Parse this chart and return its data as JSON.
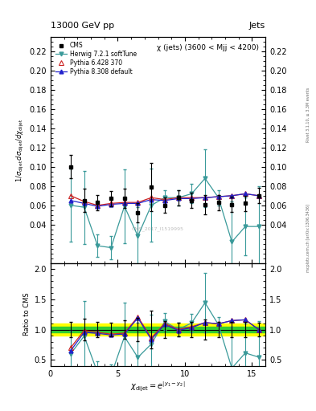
{
  "title_top": "13000 GeV pp",
  "title_right": "Jets",
  "plot_title": "χ (jets) (3600 < Mjj < 4200)",
  "xlabel": "chi_{dijet} = e^{|y_{1}-y_{2}|}",
  "ylabel_main": "1/σ_{dijet} dσ_{dijet}/dchi_{dijet}",
  "ylabel_ratio": "Ratio to CMS",
  "right_label_top": "Rivet 3.1.10, ≥ 3.3M events",
  "right_label_bottom": "mcplots.cern.ch [arXiv:1306.3436]",
  "watermark": "CMS_2017_I1519995",
  "cms_x": [
    1.5,
    2.5,
    3.5,
    4.5,
    5.5,
    6.5,
    7.5,
    8.5,
    9.5,
    10.5,
    11.5,
    12.5,
    13.5,
    14.5,
    15.5
  ],
  "cms_y": [
    0.1,
    0.065,
    0.063,
    0.067,
    0.067,
    0.052,
    0.079,
    0.06,
    0.068,
    0.065,
    0.061,
    0.063,
    0.061,
    0.062,
    0.07
  ],
  "cms_yerr": [
    0.012,
    0.012,
    0.008,
    0.008,
    0.01,
    0.01,
    0.025,
    0.008,
    0.008,
    0.008,
    0.01,
    0.008,
    0.008,
    0.008,
    0.008
  ],
  "herwig_x": [
    1.5,
    2.5,
    3.5,
    4.5,
    5.5,
    6.5,
    7.5,
    8.5,
    9.5,
    10.5,
    11.5,
    12.5,
    13.5,
    14.5,
    15.5
  ],
  "herwig_y": [
    0.06,
    0.058,
    0.018,
    0.016,
    0.059,
    0.028,
    0.06,
    0.068,
    0.068,
    0.072,
    0.088,
    0.068,
    0.022,
    0.038,
    0.038
  ],
  "herwig_yerr": [
    0.038,
    0.038,
    0.012,
    0.012,
    0.038,
    0.03,
    0.038,
    0.008,
    0.008,
    0.01,
    0.03,
    0.008,
    0.042,
    0.03,
    0.042
  ],
  "pythia6_x": [
    1.5,
    2.5,
    3.5,
    4.5,
    5.5,
    6.5,
    7.5,
    8.5,
    9.5,
    10.5,
    11.5,
    12.5,
    13.5,
    14.5,
    15.5
  ],
  "pythia6_y": [
    0.07,
    0.064,
    0.06,
    0.062,
    0.063,
    0.063,
    0.068,
    0.066,
    0.068,
    0.068,
    0.068,
    0.069,
    0.07,
    0.072,
    0.07
  ],
  "pythia8_x": [
    1.5,
    2.5,
    3.5,
    4.5,
    5.5,
    6.5,
    7.5,
    8.5,
    9.5,
    10.5,
    11.5,
    12.5,
    13.5,
    14.5,
    15.5
  ],
  "pythia8_y": [
    0.065,
    0.062,
    0.059,
    0.061,
    0.062,
    0.062,
    0.066,
    0.065,
    0.067,
    0.067,
    0.068,
    0.069,
    0.07,
    0.072,
    0.07
  ],
  "herwig_color": "#3a9a9a",
  "pythia6_color": "#cc2222",
  "pythia8_color": "#2222cc",
  "ylim_main": [
    0.0,
    0.235
  ],
  "ylim_ratio": [
    0.4,
    2.1
  ],
  "xlim": [
    0,
    16
  ],
  "yticks_main": [
    0.04,
    0.06,
    0.08,
    0.1,
    0.12,
    0.14,
    0.16,
    0.18,
    0.2,
    0.22
  ],
  "yticks_ratio": [
    0.5,
    1.0,
    1.5,
    2.0
  ],
  "xticks": [
    0,
    5,
    10,
    15
  ],
  "green_band": 0.05,
  "yellow_band": 0.1
}
